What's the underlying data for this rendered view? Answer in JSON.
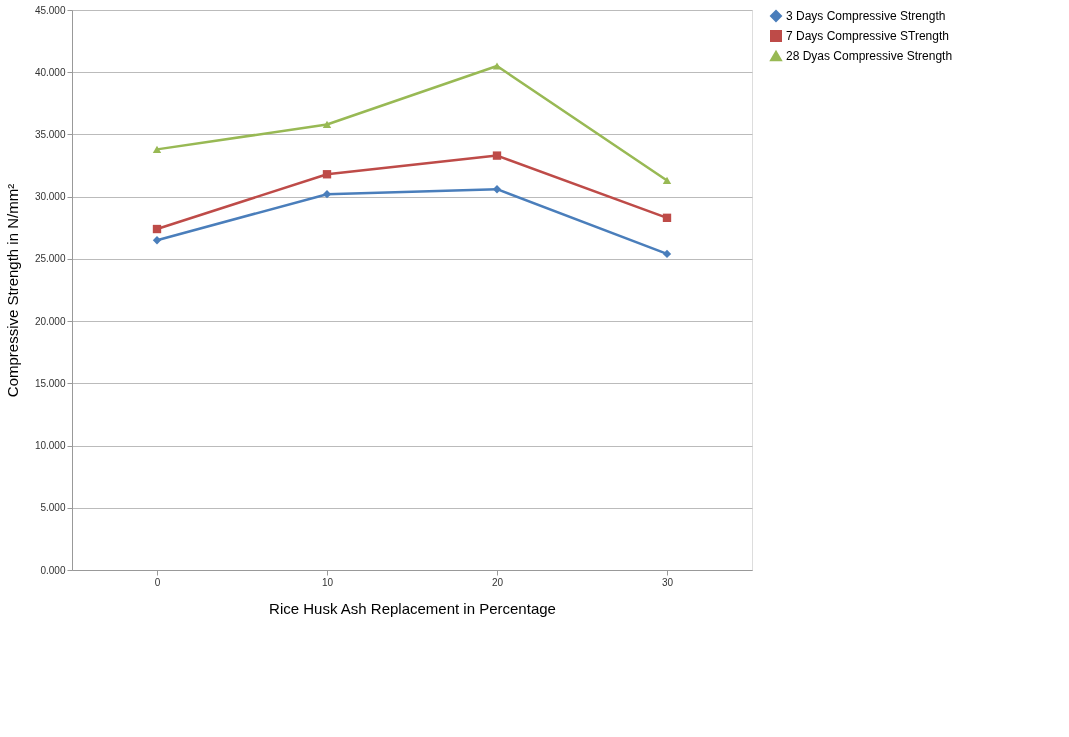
{
  "chart_data": {
    "type": "line",
    "xlabel": "Rice Husk Ash Replacement in Percentage",
    "ylabel": "Compressive Strength in N/mm²",
    "categories": [
      "0",
      "10",
      "20",
      "30"
    ],
    "series": [
      {
        "name": "3 Days Compressive Strength",
        "color": "#4a7ebb",
        "marker": "diamond",
        "values": [
          26.5,
          30.2,
          30.6,
          25.4
        ]
      },
      {
        "name": "7 Days Compressive STrength",
        "color": "#be4b48",
        "marker": "square",
        "values": [
          27.4,
          31.8,
          33.3,
          28.3
        ]
      },
      {
        "name": "28 Dyas Compressive Strength",
        "color": "#98b954",
        "marker": "triangle",
        "values": [
          33.8,
          35.8,
          40.5,
          31.3
        ]
      }
    ],
    "ylim": [
      0,
      45
    ],
    "yticks": [
      {
        "value": 0,
        "label": "0.000"
      },
      {
        "value": 5,
        "label": "5.000"
      },
      {
        "value": 10,
        "label": "10.000"
      },
      {
        "value": 15,
        "label": "15.000"
      },
      {
        "value": 20,
        "label": "20.000"
      },
      {
        "value": 25,
        "label": "25.000"
      },
      {
        "value": 30,
        "label": "30.000"
      },
      {
        "value": 35,
        "label": "35.000"
      },
      {
        "value": 40,
        "label": "40.000"
      },
      {
        "value": 45,
        "label": "45.000"
      }
    ],
    "grid": "y",
    "legend": "right"
  }
}
